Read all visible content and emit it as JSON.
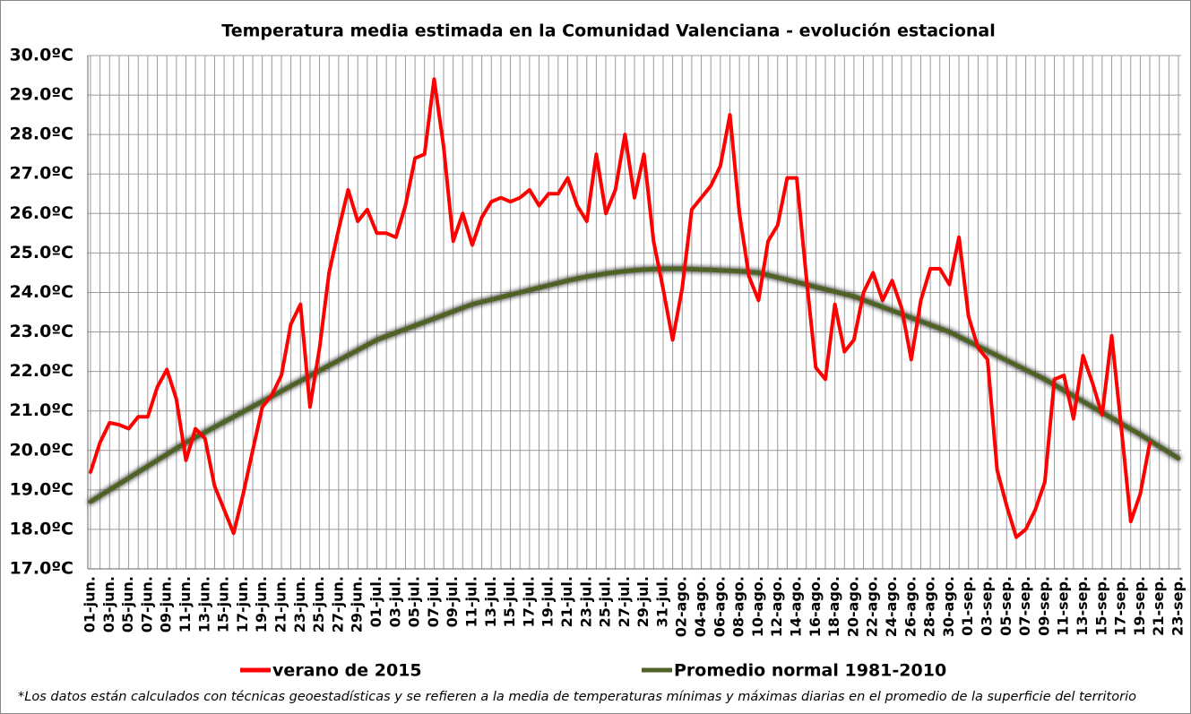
{
  "chart_data": {
    "type": "line",
    "title": "Temperatura media estimada en la Comunidad Valenciana - evolución estacional",
    "footnote": "*Los datos están calculados con técnicas geoestadísticas y se refieren a la media de temperaturas mínimas y máximas diarias en el promedio de la superficie del territorio",
    "categories": [
      "01-jun.",
      null,
      "03-jun.",
      null,
      "05-jun.",
      null,
      "07-jun.",
      null,
      "09-jun.",
      null,
      "11-jun.",
      null,
      "13-jun.",
      null,
      "15-jun.",
      null,
      "17-jun.",
      null,
      "19-jun.",
      null,
      "21-jun.",
      null,
      "23-jun.",
      null,
      "25-jun.",
      null,
      "27-jun.",
      null,
      "29-jun.",
      null,
      "01-jul.",
      null,
      "03-jul.",
      null,
      "05-jul.",
      null,
      "07-jul.",
      null,
      "09-jul.",
      null,
      "11-jul.",
      null,
      "13-jul.",
      null,
      "15-jul.",
      null,
      "17-jul.",
      null,
      "19-jul.",
      null,
      "21-jul.",
      null,
      "23-jul.",
      null,
      "25-jul.",
      null,
      "27-jul.",
      null,
      "29-jul.",
      null,
      "31-jul.",
      null,
      "02-ago.",
      null,
      "04-ago.",
      null,
      "06-ago.",
      null,
      "08-ago.",
      null,
      "10-ago.",
      null,
      "12-ago.",
      null,
      "14-ago.",
      null,
      "16-ago.",
      null,
      "18-ago.",
      null,
      "20-ago.",
      null,
      "22-ago.",
      null,
      "24-ago.",
      null,
      "26-ago.",
      null,
      "28-ago.",
      null,
      "30-ago.",
      null,
      "01-sep.",
      null,
      "03-sep.",
      null,
      "05-sep.",
      null,
      "07-sep.",
      null,
      "09-sep.",
      null,
      "11-sep.",
      null,
      "13-sep.",
      null,
      "15-sep.",
      null,
      "17-sep.",
      null,
      "19-sep.",
      null,
      "21-sep.",
      null,
      "23-sep."
    ],
    "series": [
      {
        "name": "verano de 2015",
        "color": "#ff0000",
        "values": [
          19.45,
          20.2,
          20.7,
          20.65,
          20.55,
          20.85,
          20.85,
          21.6,
          22.05,
          21.3,
          19.75,
          20.55,
          20.3,
          19.1,
          18.5,
          17.9,
          18.9,
          20.0,
          21.1,
          21.4,
          21.9,
          23.2,
          23.7,
          21.1,
          22.6,
          24.5,
          25.6,
          26.6,
          25.8,
          26.1,
          25.5,
          25.5,
          25.4,
          26.2,
          27.4,
          27.5,
          29.4,
          27.7,
          25.3,
          26.0,
          25.2,
          25.9,
          26.3,
          26.4,
          26.3,
          26.4,
          26.6,
          26.2,
          26.5,
          26.5,
          26.9,
          26.2,
          25.8,
          27.5,
          26.0,
          26.6,
          28.0,
          26.4,
          27.5,
          25.3,
          24.1,
          22.8,
          24.1,
          26.1,
          26.4,
          26.7,
          27.2,
          28.5,
          26.0,
          24.4,
          23.8,
          25.3,
          25.7,
          26.9,
          26.9,
          24.4,
          22.1,
          21.8,
          23.7,
          22.5,
          22.8,
          24.0,
          24.5,
          23.8,
          24.3,
          23.6,
          22.3,
          23.8,
          24.6,
          24.6,
          24.2,
          25.4,
          23.4,
          22.6,
          22.3,
          19.5,
          18.6,
          17.8,
          18.0,
          18.5,
          19.2,
          21.8,
          21.9,
          20.8,
          22.4,
          21.7,
          20.9,
          22.9,
          20.6,
          18.2,
          18.9,
          20.2,
          null,
          null,
          null
        ]
      },
      {
        "name": "Promedio normal 1981-2010",
        "color": "#4f6228",
        "values": [
          18.7,
          18.85,
          19.0,
          19.15,
          19.3,
          19.45,
          19.6,
          19.75,
          19.9,
          20.05,
          20.2,
          20.33,
          20.46,
          20.59,
          20.72,
          20.85,
          20.98,
          21.11,
          21.24,
          21.37,
          21.5,
          21.63,
          21.76,
          21.89,
          22.02,
          22.15,
          22.28,
          22.41,
          22.54,
          22.67,
          22.8,
          22.89,
          22.98,
          23.07,
          23.16,
          23.25,
          23.34,
          23.43,
          23.52,
          23.61,
          23.7,
          23.76,
          23.82,
          23.88,
          23.94,
          24.0,
          24.06,
          24.12,
          24.18,
          24.24,
          24.3,
          24.35,
          24.4,
          24.44,
          24.48,
          24.51,
          24.54,
          24.56,
          24.58,
          24.59,
          24.6,
          24.6,
          24.6,
          24.59,
          24.58,
          24.57,
          24.56,
          24.55,
          24.54,
          24.52,
          24.5,
          24.44,
          24.38,
          24.32,
          24.26,
          24.2,
          24.14,
          24.08,
          24.02,
          23.96,
          23.9,
          23.81,
          23.72,
          23.63,
          23.54,
          23.45,
          23.36,
          23.27,
          23.18,
          23.09,
          23.0,
          22.88,
          22.76,
          22.64,
          22.52,
          22.4,
          22.28,
          22.16,
          22.04,
          21.92,
          21.8,
          21.66,
          21.52,
          21.38,
          21.24,
          21.1,
          20.96,
          20.82,
          20.68,
          20.54,
          20.4,
          20.25,
          20.1,
          19.95,
          19.8
        ]
      }
    ],
    "ylim": [
      17,
      30
    ],
    "yticks": [
      {
        "value": 17,
        "label": "17.0ºC"
      },
      {
        "value": 18,
        "label": "18.0ºC"
      },
      {
        "value": 19,
        "label": "19.0ºC"
      },
      {
        "value": 20,
        "label": "20.0ºC"
      },
      {
        "value": 21,
        "label": "21.0ºC"
      },
      {
        "value": 22,
        "label": "22.0ºC"
      },
      {
        "value": 23,
        "label": "23.0ºC"
      },
      {
        "value": 24,
        "label": "24.0ºC"
      },
      {
        "value": 25,
        "label": "25.0ºC"
      },
      {
        "value": 26,
        "label": "26.0ºC"
      },
      {
        "value": 27,
        "label": "27.0ºC"
      },
      {
        "value": 28,
        "label": "28.0ºC"
      },
      {
        "value": 29,
        "label": "29.0ºC"
      },
      {
        "value": 30,
        "label": "30.0ºC"
      }
    ],
    "grid": true,
    "legend": "bottom"
  }
}
